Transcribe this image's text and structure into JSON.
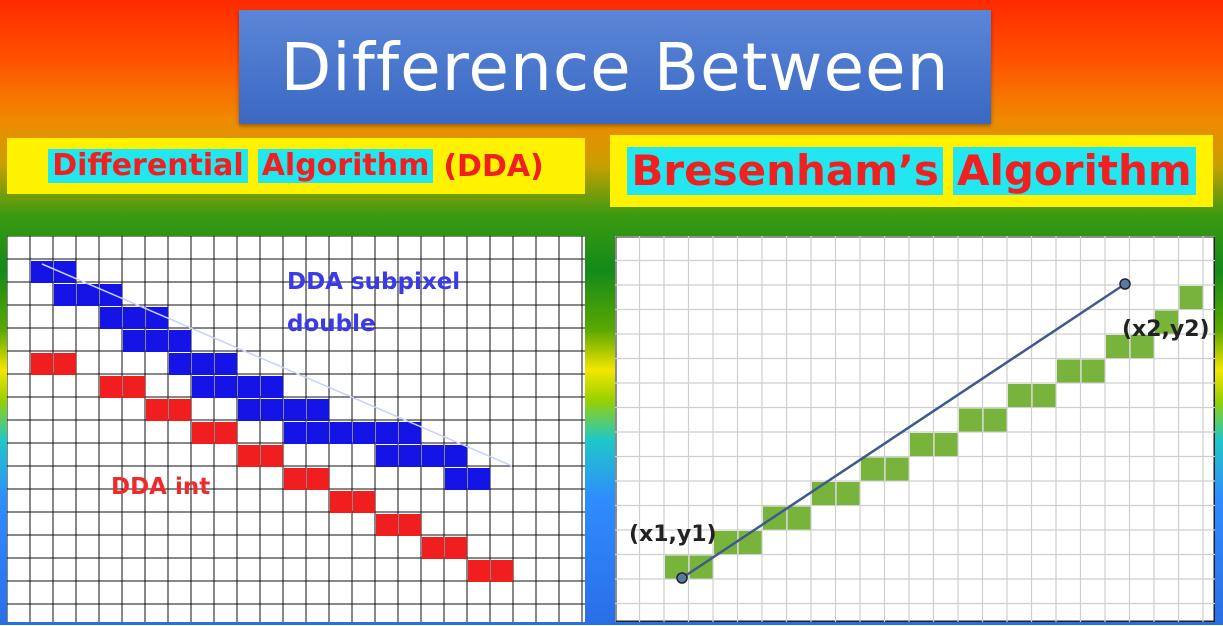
{
  "title": "Difference Between",
  "left": {
    "heading": [
      "Differential",
      "Algorithm",
      "(DDA)"
    ],
    "label_subpixel_line1": "DDA subpixel",
    "label_subpixel_line2": "double",
    "label_int": "DDA int",
    "colors": {
      "subpixel": "#1414e6",
      "int": "#f01e1e"
    }
  },
  "right": {
    "heading": [
      "Bresenham’s",
      "Algorithm"
    ],
    "start_label": "(x1,y1)",
    "end_label": "(x2,y2)",
    "colors": {
      "pixel": "#78b43c",
      "line": "#3c5a8c"
    }
  }
}
